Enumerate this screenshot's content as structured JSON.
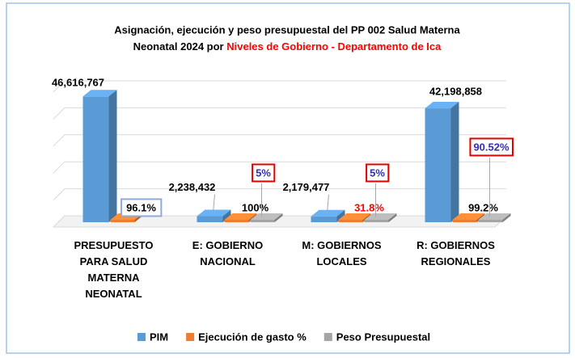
{
  "chart_data": {
    "type": "bar3d",
    "title": "Asignación, ejecución y peso presupuestal del PP 002 Salud Materna Neonatal 2024 por",
    "title_highlight": "Niveles de Gobierno - Departamento de Ica",
    "title_highlight_color": "#ff0000",
    "categories": [
      "PRESUPUESTO PARA SALUD MATERNA NEONATAL",
      "E: GOBIERNO NACIONAL",
      "M: GOBIERNOS LOCALES",
      "R: GOBIERNOS REGIONALES"
    ],
    "series": [
      {
        "name": "PIM",
        "color": "#5b9bd5",
        "values": [
          46616767,
          2238432,
          2179477,
          42198858
        ],
        "value_labels": [
          "46,616,767",
          "2,238,432",
          "2,179,477",
          "42,198,858"
        ]
      },
      {
        "name": "Ejecución de gasto %",
        "color": "#ed7d31",
        "values": [
          96.1,
          100,
          31.8,
          99.2
        ],
        "value_labels": [
          "96.1%",
          "100%",
          "31.8%",
          "99.2%"
        ],
        "label_colors": [
          "#000000",
          "#000000",
          "#ff0000",
          "#000000"
        ],
        "label_box_colors": [
          "#8ea9db",
          null,
          null,
          null
        ]
      },
      {
        "name": "Peso Presupuestal",
        "color": "#a5a5a5",
        "values": [
          null,
          5,
          5,
          90.52
        ],
        "value_labels": [
          null,
          "5%",
          "5%",
          "90.52%"
        ],
        "label_colors": [
          null,
          "#2f2fb5",
          "#2f2fb5",
          "#2f2fb5"
        ],
        "label_box_colors": [
          null,
          "#e00000",
          "#e00000",
          "#e00000"
        ]
      }
    ],
    "ylim": [
      0,
      50000000
    ],
    "yticks": [
      0,
      10000000,
      20000000,
      30000000,
      40000000,
      50000000
    ],
    "grid": true,
    "legend": "bottom"
  }
}
